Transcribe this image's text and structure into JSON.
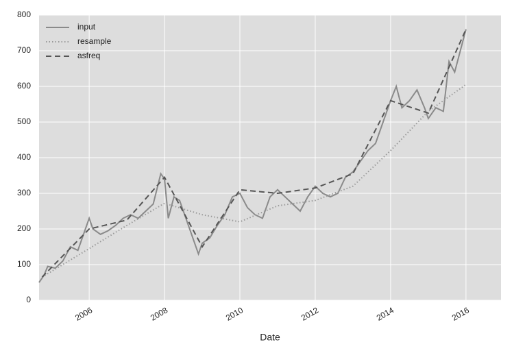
{
  "chart_data": {
    "type": "line",
    "x_label": "Date",
    "xlim": [
      2004.67,
      2016.93
    ],
    "xticks": [
      2006,
      2008,
      2010,
      2012,
      2014,
      2016
    ],
    "ylim": [
      0,
      800
    ],
    "yticks": [
      0,
      100,
      200,
      300,
      400,
      500,
      600,
      700,
      800
    ],
    "grid": true,
    "legend": "upper left",
    "series": [
      {
        "name": "input",
        "color": "#8a8a8a",
        "style": "solid",
        "x": [
          2004.67,
          2004.8,
          2004.9,
          2005.1,
          2005.3,
          2005.5,
          2005.7,
          2005.9,
          2006.0,
          2006.1,
          2006.3,
          2006.5,
          2006.7,
          2006.9,
          2007.1,
          2007.3,
          2007.5,
          2007.7,
          2007.9,
          2008.0,
          2008.1,
          2008.25,
          2008.4,
          2008.6,
          2008.8,
          2008.9,
          2009.0,
          2009.2,
          2009.4,
          2009.6,
          2009.8,
          2010.0,
          2010.2,
          2010.4,
          2010.6,
          2010.8,
          2011.0,
          2011.2,
          2011.4,
          2011.6,
          2011.8,
          2012.0,
          2012.2,
          2012.4,
          2012.6,
          2012.8,
          2013.0,
          2013.2,
          2013.4,
          2013.6,
          2013.8,
          2014.0,
          2014.15,
          2014.3,
          2014.5,
          2014.7,
          2014.9,
          2015.0,
          2015.2,
          2015.4,
          2015.55,
          2015.7,
          2015.85,
          2016.0
        ],
        "values": [
          50,
          70,
          95,
          90,
          110,
          150,
          140,
          200,
          230,
          200,
          185,
          195,
          210,
          230,
          240,
          230,
          250,
          270,
          355,
          340,
          230,
          290,
          280,
          220,
          160,
          130,
          160,
          175,
          210,
          240,
          290,
          300,
          260,
          240,
          230,
          290,
          310,
          290,
          270,
          250,
          290,
          320,
          300,
          290,
          300,
          345,
          360,
          390,
          420,
          440,
          500,
          560,
          600,
          540,
          560,
          590,
          540,
          510,
          540,
          530,
          670,
          640,
          700,
          760
        ]
      },
      {
        "name": "resample",
        "color": "#999999",
        "style": "dotted",
        "x": [
          2004.75,
          2006.0,
          2007.0,
          2008.0,
          2009.0,
          2010.0,
          2011.0,
          2012.0,
          2013.0,
          2014.0,
          2015.0,
          2016.0
        ],
        "values": [
          65,
          145,
          210,
          272,
          240,
          220,
          265,
          280,
          320,
          420,
          530,
          605
        ]
      },
      {
        "name": "asfreq",
        "color": "#555555",
        "style": "dashed",
        "x": [
          2004.75,
          2006.0,
          2007.0,
          2008.0,
          2009.0,
          2010.0,
          2011.0,
          2012.0,
          2013.0,
          2014.0,
          2015.0,
          2016.0
        ],
        "values": [
          65,
          200,
          225,
          345,
          150,
          310,
          300,
          315,
          355,
          560,
          525,
          760
        ]
      }
    ]
  }
}
